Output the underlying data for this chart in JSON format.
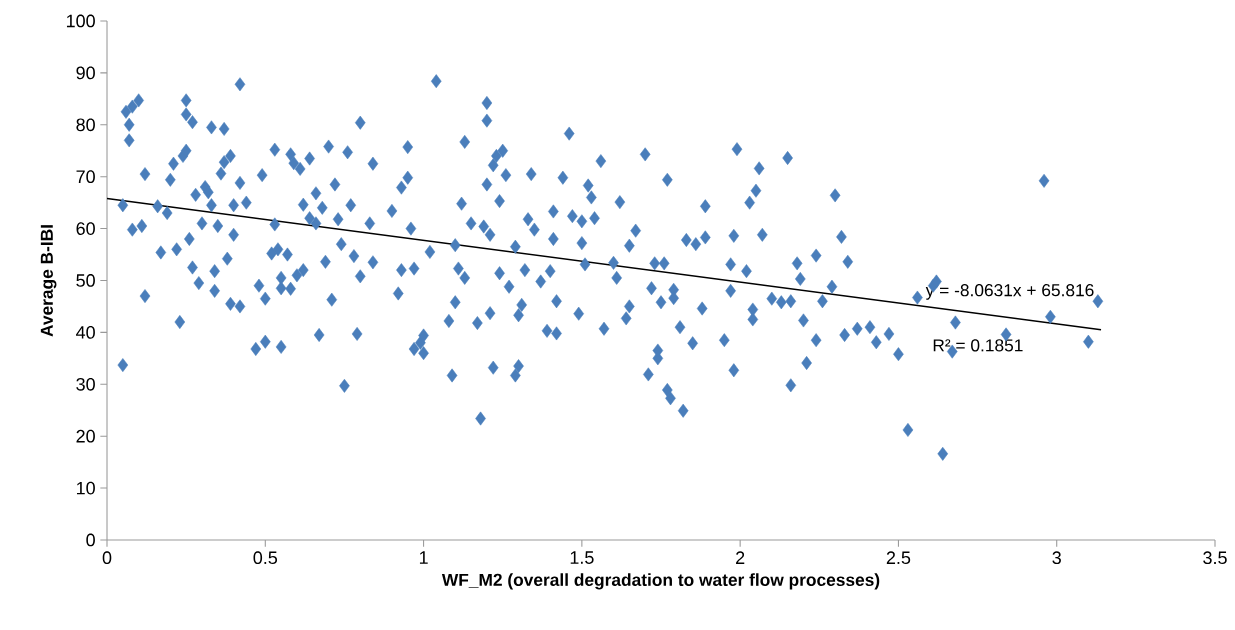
{
  "chart_data": {
    "type": "scatter",
    "xlabel": "WF_M2 (overall degradation to water flow processes)",
    "ylabel": "Average B-IBI",
    "xlim": [
      0,
      3.5
    ],
    "ylim": [
      0,
      100
    ],
    "xticks": [
      0,
      0.5,
      1,
      1.5,
      2,
      2.5,
      3,
      3.5
    ],
    "yticks": [
      0,
      10,
      20,
      30,
      40,
      50,
      60,
      70,
      80,
      90,
      100
    ],
    "marker": "diamond",
    "annotations": [
      "y = -8.0631x + 65.816",
      "R² = 0.1851"
    ],
    "series": [
      {
        "color": "#4a7ebb",
        "x": [
          0.05,
          0.05,
          0.06,
          0.07,
          0.07,
          0.08,
          0.08,
          0.1,
          0.11,
          0.12,
          0.12,
          0.16,
          0.17,
          0.19,
          0.2,
          0.21,
          0.22,
          0.23,
          0.24,
          0.25,
          0.25,
          0.26,
          0.25,
          0.27,
          0.27,
          0.28,
          0.29,
          0.3,
          0.31,
          0.32,
          0.33,
          0.33,
          0.34,
          0.34,
          0.35,
          0.36,
          0.37,
          0.37,
          0.38,
          0.39,
          0.39,
          0.4,
          0.4,
          0.42,
          0.42,
          0.42,
          0.44,
          0.47,
          0.48,
          0.49,
          0.5,
          0.5,
          0.52,
          0.53,
          0.53,
          0.54,
          0.55,
          0.55,
          0.55,
          0.57,
          0.58,
          0.58,
          0.59,
          0.6,
          0.61,
          0.62,
          0.62,
          0.64,
          0.64,
          0.66,
          0.66,
          0.67,
          0.68,
          0.69,
          0.7,
          0.71,
          0.72,
          0.73,
          0.74,
          0.75,
          0.76,
          0.77,
          0.78,
          0.79,
          0.8,
          0.8,
          0.83,
          0.84,
          0.84,
          0.9,
          0.92,
          0.93,
          0.93,
          0.95,
          0.95,
          0.96,
          0.97,
          0.97,
          0.99,
          1.0,
          1.0,
          1.02,
          1.04,
          1.08,
          1.09,
          1.1,
          1.1,
          1.11,
          1.12,
          1.13,
          1.13,
          1.15,
          1.17,
          1.18,
          1.19,
          1.2,
          1.2,
          1.2,
          1.21,
          1.21,
          1.22,
          1.22,
          1.23,
          1.24,
          1.24,
          1.25,
          1.26,
          1.27,
          1.29,
          1.29,
          1.3,
          1.3,
          1.31,
          1.32,
          1.33,
          1.34,
          1.35,
          1.37,
          1.39,
          1.4,
          1.41,
          1.41,
          1.42,
          1.42,
          1.44,
          1.46,
          1.47,
          1.49,
          1.5,
          1.5,
          1.51,
          1.52,
          1.53,
          1.54,
          1.56,
          1.57,
          1.6,
          1.61,
          1.62,
          1.64,
          1.65,
          1.65,
          1.67,
          1.7,
          1.71,
          1.72,
          1.73,
          1.74,
          1.74,
          1.75,
          1.76,
          1.77,
          1.77,
          1.78,
          1.79,
          1.79,
          1.81,
          1.82,
          1.83,
          1.85,
          1.86,
          1.89,
          1.89,
          1.88,
          1.95,
          1.97,
          1.97,
          1.98,
          1.98,
          1.99,
          2.02,
          2.03,
          2.04,
          2.04,
          2.05,
          2.06,
          2.07,
          2.1,
          2.13,
          2.15,
          2.16,
          2.16,
          2.18,
          2.19,
          2.2,
          2.21,
          2.24,
          2.24,
          2.26,
          2.29,
          2.3,
          2.32,
          2.33,
          2.34,
          2.37,
          2.41,
          2.43,
          2.47,
          2.5,
          2.53,
          2.56,
          2.61,
          2.62,
          2.64,
          2.67,
          2.68,
          2.84,
          2.96,
          2.98,
          3.1,
          3.13
        ],
        "values": [
          33.7,
          64.5,
          82.5,
          80,
          77,
          83.5,
          59.8,
          84.7,
          60.5,
          70.5,
          47,
          64.3,
          55.4,
          63,
          69.4,
          72.5,
          56,
          42,
          74,
          75,
          84.7,
          58,
          82,
          52.5,
          80.5,
          66.5,
          49.5,
          61,
          68,
          67,
          64.5,
          79.5,
          51.8,
          48,
          60.5,
          70.6,
          72.8,
          79.2,
          54.2,
          74,
          45.5,
          64.5,
          58.8,
          45,
          68.8,
          87.8,
          65,
          36.8,
          49,
          70.3,
          38.2,
          46.5,
          55.2,
          75.2,
          60.8,
          56,
          37.2,
          48.5,
          50.5,
          55,
          74.3,
          48.4,
          72.6,
          51,
          71.5,
          64.6,
          52,
          73.5,
          62,
          61,
          66.8,
          39.5,
          64,
          53.6,
          75.8,
          46.3,
          68.5,
          61.8,
          57,
          29.7,
          74.7,
          64.5,
          54.7,
          39.7,
          50.8,
          80.4,
          61,
          72.5,
          53.5,
          63.4,
          47.5,
          67.9,
          52,
          75.7,
          69.8,
          60,
          52.3,
          36.8,
          38,
          39.4,
          36,
          55.5,
          88.4,
          42.2,
          31.7,
          56.8,
          45.8,
          52.3,
          64.8,
          50.5,
          76.7,
          61,
          41.8,
          23.4,
          60.4,
          84.2,
          80.8,
          68.5,
          58.8,
          43.7,
          33.2,
          72.2,
          74,
          51.4,
          65.3,
          75,
          70.3,
          48.8,
          56.5,
          31.7,
          43.3,
          33.5,
          45.3,
          52,
          61.8,
          70.5,
          59.8,
          49.8,
          40.3,
          51.8,
          63.3,
          58,
          39.8,
          46,
          69.8,
          78.3,
          62.4,
          43.6,
          61.4,
          57.2,
          53.1,
          68.3,
          66,
          62,
          73,
          40.7,
          53.4,
          50.5,
          65.1,
          42.7,
          56.7,
          45,
          59.6,
          74.3,
          31.9,
          48.5,
          53.3,
          35,
          36.5,
          45.8,
          53.3,
          69.4,
          28.9,
          27.3,
          48.2,
          46.6,
          41,
          24.9,
          57.8,
          37.9,
          57,
          64.3,
          58.3,
          44.6,
          38.5,
          48,
          53.1,
          32.7,
          58.6,
          75.3,
          51.8,
          65,
          44.4,
          42.5,
          67.3,
          71.6,
          58.8,
          46.5,
          45.8,
          73.6,
          29.8,
          46,
          53.3,
          50.3,
          42.3,
          34.1,
          38.5,
          54.8,
          46,
          48.8,
          66.4,
          58.4,
          39.5,
          53.6,
          40.7,
          41,
          38.1,
          39.7,
          35.8,
          21.2,
          46.7,
          49,
          49.8,
          16.6,
          36.3,
          41.9,
          39.6,
          69.2,
          43,
          38.2,
          46
        ]
      },
      {
        "type": "line",
        "color": "#000000",
        "marker": "none",
        "x": [
          0,
          3.14
        ],
        "values": [
          65.8,
          40.5
        ]
      }
    ]
  }
}
